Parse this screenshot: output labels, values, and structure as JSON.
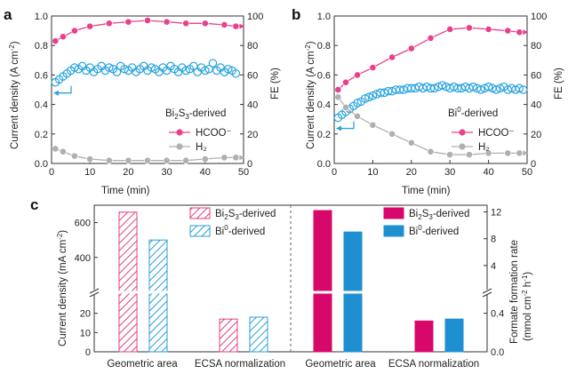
{
  "chart_data": [
    {
      "panel": "a",
      "type": "line",
      "xlabel": "Time (min)",
      "ylabel_left": "Current density (A cm",
      "ylabel_left_sup": "-2",
      "ylabel_left_end": ")",
      "ylabel_right": "FE (%)",
      "xlim": [
        0,
        50
      ],
      "ylim_left": [
        0,
        1.0
      ],
      "ylim_right": [
        0,
        100
      ],
      "x_ticks": [
        "0",
        "10",
        "20",
        "30",
        "40",
        "50"
      ],
      "y_left_ticks": [
        "0.0",
        "0.2",
        "0.4",
        "0.6",
        "0.8",
        "1.0"
      ],
      "y_right_ticks": [
        "0",
        "20",
        "40",
        "60",
        "80",
        "100"
      ],
      "legend_title": "Bi2S3-derived",
      "legend_title_parts": [
        "Bi",
        "2",
        "S",
        "3",
        "-derived"
      ],
      "series": [
        {
          "name": "HCOO⁻",
          "axis": "right",
          "color": "#e8408e",
          "x": [
            1,
            3,
            6,
            10,
            15,
            20,
            25,
            30,
            35,
            40,
            45,
            48
          ],
          "y": [
            83,
            86,
            90,
            93,
            95,
            96,
            97,
            96,
            95,
            95,
            94,
            93
          ]
        },
        {
          "name": "H₂",
          "axis": "right",
          "color": "#b0b0b0",
          "x": [
            1,
            3,
            6,
            10,
            15,
            20,
            25,
            30,
            35,
            40,
            45,
            48
          ],
          "y": [
            10,
            8,
            5,
            3,
            2,
            2,
            2,
            2,
            2,
            3,
            4,
            4
          ]
        },
        {
          "name": "Current density",
          "axis": "left",
          "color": "#29a3dc",
          "x": [
            1,
            2,
            3,
            4,
            5,
            6,
            7,
            8,
            9,
            10,
            11,
            12,
            13,
            14,
            15,
            16,
            17,
            18,
            19,
            20,
            21,
            22,
            23,
            24,
            25,
            26,
            27,
            28,
            29,
            30,
            31,
            32,
            33,
            34,
            35,
            36,
            37,
            38,
            39,
            40,
            41,
            42,
            43,
            44,
            45,
            46,
            47,
            48
          ],
          "y": [
            0.55,
            0.57,
            0.59,
            0.61,
            0.63,
            0.65,
            0.64,
            0.66,
            0.63,
            0.65,
            0.62,
            0.64,
            0.66,
            0.63,
            0.65,
            0.64,
            0.62,
            0.66,
            0.64,
            0.63,
            0.65,
            0.62,
            0.64,
            0.66,
            0.63,
            0.65,
            0.64,
            0.62,
            0.65,
            0.63,
            0.66,
            0.64,
            0.62,
            0.65,
            0.63,
            0.64,
            0.66,
            0.62,
            0.65,
            0.63,
            0.64,
            0.68,
            0.63,
            0.65,
            0.62,
            0.64,
            0.63,
            0.61
          ]
        }
      ]
    },
    {
      "panel": "b",
      "type": "line",
      "xlabel": "Time (min)",
      "ylabel_left": "Current density (A cm",
      "ylabel_left_sup": "-2",
      "ylabel_left_end": ")",
      "ylabel_right": "FE (%)",
      "xlim": [
        0,
        50
      ],
      "ylim_left": [
        0,
        1.0
      ],
      "ylim_right": [
        0,
        100
      ],
      "x_ticks": [
        "0",
        "10",
        "20",
        "30",
        "40",
        "50"
      ],
      "y_left_ticks": [
        "0.0",
        "0.2",
        "0.4",
        "0.6",
        "0.8",
        "1.0"
      ],
      "y_right_ticks": [
        "0",
        "20",
        "40",
        "60",
        "80",
        "100"
      ],
      "legend_title": "Bi0-derived",
      "legend_title_parts": [
        "Bi",
        "0",
        "-derived"
      ],
      "series": [
        {
          "name": "HCOO⁻",
          "axis": "right",
          "color": "#e8408e",
          "x": [
            1,
            3,
            6,
            10,
            15,
            20,
            25,
            30,
            35,
            40,
            45,
            48
          ],
          "y": [
            50,
            55,
            60,
            65,
            72,
            78,
            85,
            91,
            92,
            91,
            90,
            89
          ]
        },
        {
          "name": "H₂",
          "axis": "right",
          "color": "#b0b0b0",
          "x": [
            1,
            3,
            6,
            10,
            15,
            20,
            25,
            30,
            35,
            40,
            45,
            48
          ],
          "y": [
            45,
            38,
            32,
            26,
            20,
            14,
            8,
            6,
            6,
            7,
            7,
            7
          ]
        },
        {
          "name": "Current density",
          "axis": "left",
          "color": "#29a3dc",
          "x": [
            1,
            2,
            3,
            4,
            5,
            6,
            7,
            8,
            9,
            10,
            11,
            12,
            13,
            14,
            15,
            16,
            17,
            18,
            19,
            20,
            21,
            22,
            23,
            24,
            25,
            26,
            27,
            28,
            29,
            30,
            31,
            32,
            33,
            34,
            35,
            36,
            37,
            38,
            39,
            40,
            41,
            42,
            43,
            44,
            45,
            46,
            47,
            48,
            49
          ],
          "y": [
            0.31,
            0.33,
            0.35,
            0.37,
            0.39,
            0.41,
            0.42,
            0.44,
            0.45,
            0.46,
            0.47,
            0.48,
            0.48,
            0.49,
            0.49,
            0.5,
            0.5,
            0.5,
            0.51,
            0.51,
            0.51,
            0.52,
            0.51,
            0.52,
            0.51,
            0.51,
            0.52,
            0.53,
            0.52,
            0.51,
            0.52,
            0.51,
            0.51,
            0.52,
            0.51,
            0.52,
            0.51,
            0.5,
            0.51,
            0.52,
            0.51,
            0.5,
            0.51,
            0.52,
            0.5,
            0.51,
            0.5,
            0.51,
            0.5
          ]
        }
      ]
    },
    {
      "panel": "c",
      "type": "bar",
      "ylabel_left": "Current density (mA cm",
      "ylabel_left_sup": "-2",
      "ylabel_left_end": ")",
      "ylabel_right": "Formate formation rate",
      "ylabel_right_2": "(mmol cm",
      "ylabel_right_2_sup": "-2",
      "ylabel_right_2_mid": " h",
      "ylabel_right_2_sup2": "-1",
      "ylabel_right_2_end": ")",
      "categories": [
        "Geometric area",
        "ECSA normalization",
        "Geometric area",
        "ECSA normalization"
      ],
      "y_left_ticks_low": [
        "0",
        "10",
        "20"
      ],
      "y_left_ticks_high": [
        "400",
        "600"
      ],
      "y_right_ticks_low": [
        "0.0",
        "0.4"
      ],
      "y_right_ticks_high": [
        "4",
        "8",
        "12"
      ],
      "legend": [
        {
          "name": "Bi2S3-derived",
          "parts": [
            "Bi",
            "2",
            "S",
            "3",
            "-derived"
          ],
          "style": "hatched",
          "color": "#e0407f"
        },
        {
          "name": "Bi0-derived",
          "parts": [
            "Bi",
            "0",
            "-derived"
          ],
          "style": "hatched",
          "color": "#2a9fd6"
        },
        {
          "name": "Bi2S3-derived",
          "parts": [
            "Bi",
            "2",
            "S",
            "3",
            "-derived"
          ],
          "style": "solid",
          "color": "#d8086a"
        },
        {
          "name": "Bi0-derived",
          "parts": [
            "Bi",
            "0",
            "-derived"
          ],
          "style": "solid",
          "color": "#1e8fd0"
        }
      ],
      "series_left_current_density_mA_cm2": {
        "geometric_area": {
          "Bi2S3-derived": 660,
          "Bi0-derived": 500
        },
        "ecsa_normalization": {
          "Bi2S3-derived": 17,
          "Bi0-derived": 18
        }
      },
      "series_right_formate_rate_mmol_cm2_h": {
        "geometric_area": {
          "Bi2S3-derived": 12.2,
          "Bi0-derived": 9.0
        },
        "ecsa_normalization": {
          "Bi2S3-derived": 0.32,
          "Bi0-derived": 0.34
        }
      }
    }
  ],
  "panel_labels": [
    "a",
    "b",
    "c"
  ]
}
